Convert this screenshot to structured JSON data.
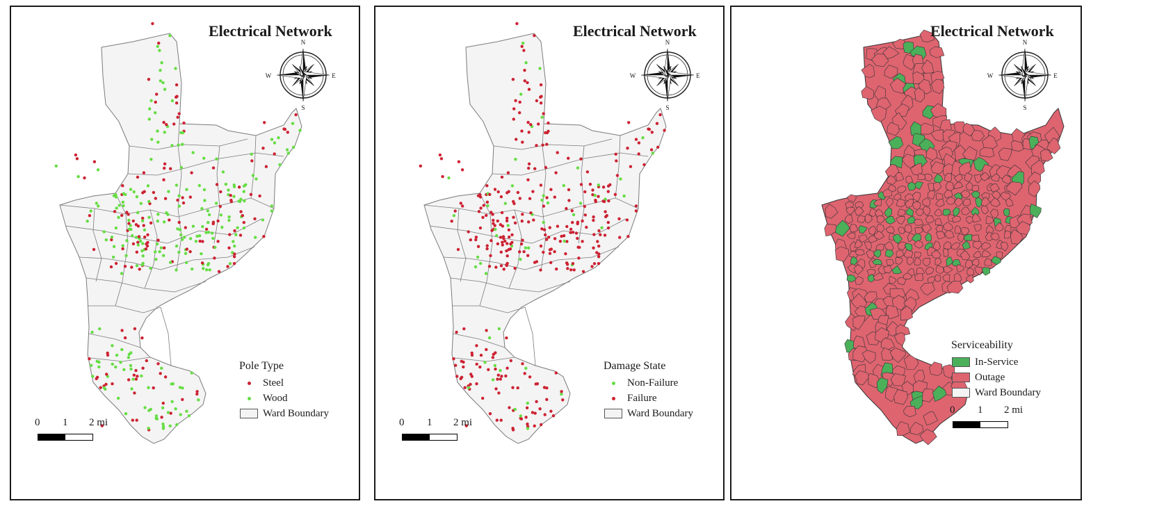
{
  "colors": {
    "land": "#f4f4f4",
    "ward_stroke": "#7a7a7a",
    "steel": "#cc2233",
    "wood": "#66dd44",
    "failure": "#cc2233",
    "non_failure": "#66dd44",
    "in_service": "#4caf5a",
    "outage": "#de6470",
    "frame": "#1a1a1a"
  },
  "compass": {
    "n": "N",
    "s": "S",
    "e": "E",
    "w": "W",
    "icon": "compass-rose-icon"
  },
  "panels": [
    {
      "title": "Electrical Network",
      "legend": {
        "title": "Pole Type",
        "items": [
          {
            "label": "Steel",
            "kind": "dot",
            "color": "#cc2233"
          },
          {
            "label": "Wood",
            "kind": "dot",
            "color": "#66dd44"
          },
          {
            "label": "Ward Boundary",
            "kind": "swatch",
            "color": "#f4f4f4"
          }
        ]
      },
      "scale": {
        "l0": "0",
        "l1": "1",
        "l2": "2 mi"
      }
    },
    {
      "title": "Electrical Network",
      "legend": {
        "title": "Damage State",
        "items": [
          {
            "label": "Non-Failure",
            "kind": "dot",
            "color": "#66dd44"
          },
          {
            "label": "Failure",
            "kind": "dot",
            "color": "#cc2233"
          },
          {
            "label": "Ward Boundary",
            "kind": "swatch",
            "color": "#f4f4f4"
          }
        ]
      },
      "scale": {
        "l0": "0",
        "l1": "1",
        "l2": "2 mi"
      }
    },
    {
      "title": "Electrical Network",
      "legend": {
        "title": "Serviceability",
        "items": [
          {
            "label": "In-Service",
            "kind": "swatch",
            "color": "#4caf5a"
          },
          {
            "label": "Outage",
            "kind": "swatch",
            "color": "#de6470"
          },
          {
            "label": "Ward Boundary",
            "kind": "swatch",
            "color": "#f4f4f4"
          }
        ]
      },
      "scale": {
        "l0": "0",
        "l1": "1",
        "l2": "2 mi"
      }
    }
  ]
}
